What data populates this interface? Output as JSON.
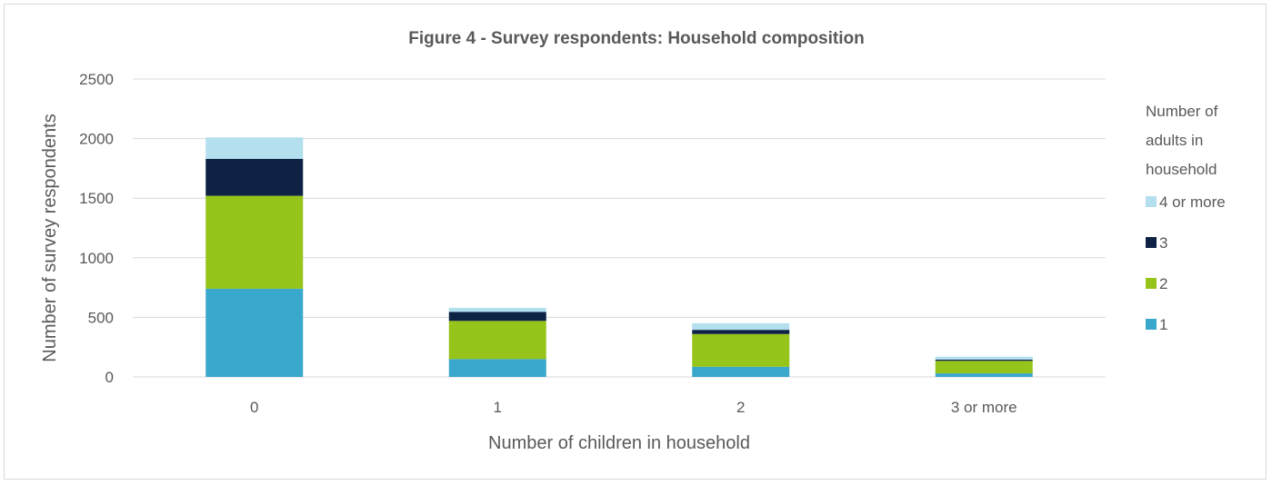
{
  "chart_data": {
    "type": "bar",
    "stacked": true,
    "title": "Figure 4 - Survey respondents: Household composition",
    "xlabel": "Number of children in household",
    "ylabel": "Number of survey respondents",
    "categories": [
      "0",
      "1",
      "2",
      "3 or more"
    ],
    "ylim": [
      0,
      2500
    ],
    "yticks": [
      "0",
      "500",
      "1000",
      "1500",
      "2000",
      "2500"
    ],
    "grid": true,
    "legend_title": "Number of adults in household",
    "legend_title_lines": [
      "Number of",
      "adults in",
      "household"
    ],
    "legend_position": "right",
    "series": [
      {
        "name": "1",
        "color": "#3aa8cc",
        "values": [
          740,
          150,
          85,
          30
        ]
      },
      {
        "name": "2",
        "color": "#96c41a",
        "values": [
          780,
          320,
          275,
          105
        ]
      },
      {
        "name": "3",
        "color": "#0d2244",
        "values": [
          310,
          75,
          35,
          10
        ]
      },
      {
        "name": "4 or more",
        "color": "#b3dfee",
        "values": [
          180,
          35,
          55,
          25
        ]
      }
    ]
  }
}
